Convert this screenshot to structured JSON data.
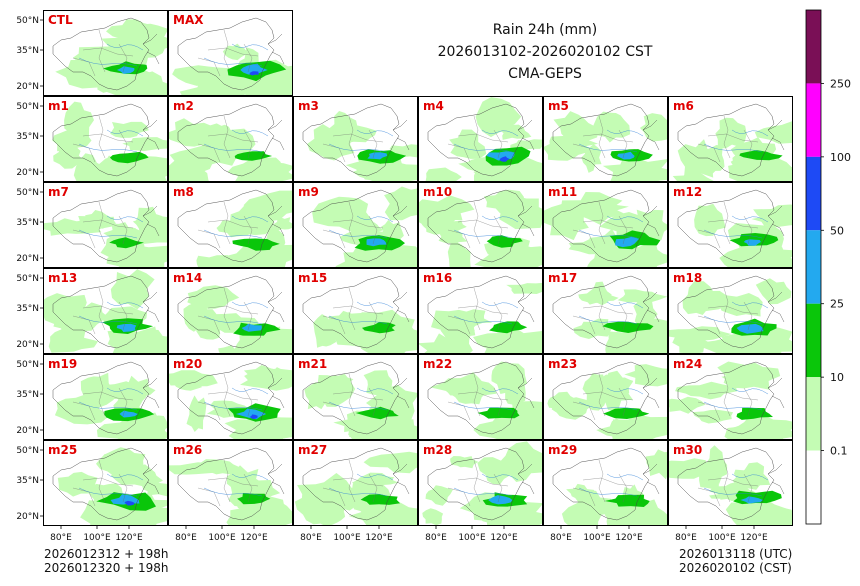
{
  "title": {
    "line1": "Rain 24h (mm)",
    "line2": "2026013102-2026020102 CST",
    "line3": "CMA-GEPS"
  },
  "footer": {
    "init_utc": "2026012312 + 198h",
    "init_cst": "2026012320 + 198h",
    "valid_utc": "2026013118 (UTC)",
    "valid_cst": "2026020102 (CST)"
  },
  "panels": [
    "CTL",
    "MAX",
    "m1",
    "m2",
    "m3",
    "m4",
    "m5",
    "m6",
    "m7",
    "m8",
    "m9",
    "m10",
    "m11",
    "m12",
    "m13",
    "m14",
    "m15",
    "m16",
    "m17",
    "m18",
    "m19",
    "m20",
    "m21",
    "m22",
    "m23",
    "m24",
    "m25",
    "m26",
    "m27",
    "m28",
    "m29",
    "m30"
  ],
  "axes": {
    "lat_ticks": [
      "50°N",
      "35°N",
      "20°N"
    ],
    "lon_ticks": [
      "80°E",
      "100°E",
      "120°E"
    ]
  },
  "colorbar": {
    "levels": [
      "0.1",
      "10",
      "25",
      "50",
      "100",
      "250"
    ],
    "colors": [
      "#ffffff",
      "#c4fcb4",
      "#0ac60a",
      "#23a9ef",
      "#1e4af5",
      "#ff00ff",
      "#7a0f56"
    ]
  },
  "colors": {
    "panel_label": "#e00000"
  }
}
